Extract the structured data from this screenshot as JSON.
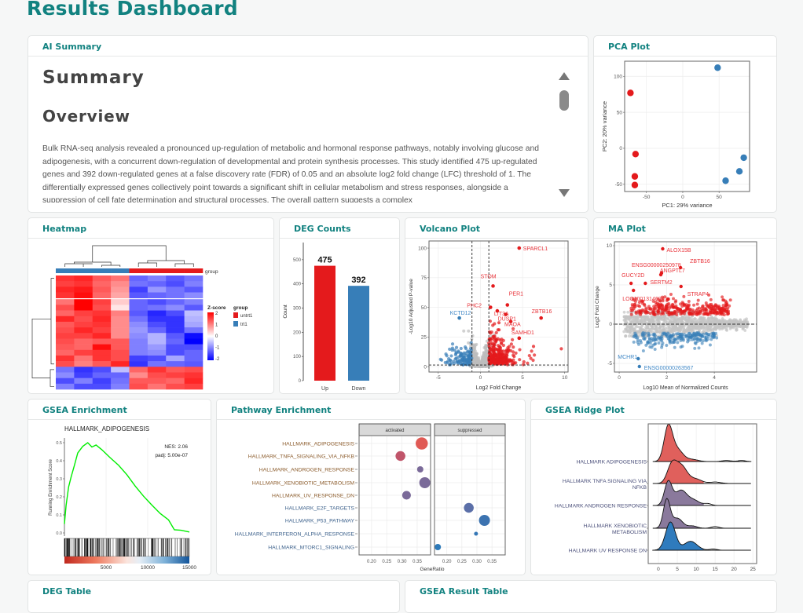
{
  "page_title": "Results Dashboard",
  "colors": {
    "accent": "#128280",
    "up": "#e41a1c",
    "down": "#377eb8",
    "ns": "#bdbdbd"
  },
  "cards": {
    "summary": "AI Summary",
    "pca": "PCA Plot",
    "heatmap": "Heatmap",
    "deg_counts": "DEG Counts",
    "volcano": "Volcano Plot",
    "ma": "MA Plot",
    "gsea": "GSEA Enrichment",
    "pathway": "Pathway Enrichment",
    "ridge": "GSEA Ridge Plot",
    "deg_table": "DEG Table",
    "gsea_table": "GSEA Result Table"
  },
  "summary": {
    "heading": "Summary",
    "subheading": "Overview",
    "text": "Bulk RNA-seq analysis revealed a pronounced up-regulation of metabolic and hormonal response pathways, notably involving glucose and adipogenesis, with a concurrent down-regulation of developmental and protein synthesis processes. This study identified 475 up-regulated genes and 392 down-regulated genes at a false discovery rate (FDR) of 0.05 and an absolute log2 fold change (LFC) threshold of 1. The differentially expressed genes collectively point towards a significant shift in cellular metabolism and stress responses, alongside a suppression of cell fate determination and structural processes. The overall pattern suggests a complex"
  },
  "chart_data": [
    {
      "id": "pca",
      "type": "scatter",
      "xlabel": "PC1: 29% variance",
      "ylabel": "PC2: 20% variance",
      "xlim": [
        -80,
        92
      ],
      "ylim": [
        -60,
        121
      ],
      "xticks": [
        -50,
        0,
        50
      ],
      "yticks": [
        -50,
        0,
        50,
        100
      ],
      "grid": true,
      "series": [
        {
          "color": "#e41a1c",
          "points": [
            [
              -72,
              77
            ],
            [
              -65,
              -8
            ],
            [
              -66,
              -39
            ],
            [
              -66,
              -51
            ]
          ]
        },
        {
          "color": "#377eb8",
          "points": [
            [
              48,
              112
            ],
            [
              59,
              -45
            ],
            [
              78,
              -32
            ],
            [
              84,
              -13
            ]
          ]
        }
      ]
    },
    {
      "id": "heatmap",
      "type": "heatmap",
      "annotation_label": "group",
      "legend_title": "Z-score",
      "legend_ticks": [
        2,
        1,
        0,
        -1,
        -2
      ],
      "group_legend_title": "group",
      "groups": [
        {
          "name": "untrt1",
          "color": "#e41a1c"
        },
        {
          "name": "trt1",
          "color": "#377eb8"
        }
      ],
      "column_groups": [
        "trt1",
        "trt1",
        "trt1",
        "trt1",
        "untrt1",
        "untrt1",
        "untrt1",
        "untrt1"
      ],
      "matrix": [
        [
          1.6,
          1.7,
          1.3,
          1.1,
          -1.2,
          -1.0,
          -1.3,
          -1.1
        ],
        [
          1.5,
          1.6,
          1.2,
          0.9,
          -1.1,
          -1.2,
          -1.4,
          -1.0
        ],
        [
          1.7,
          1.8,
          1.3,
          0.8,
          -1.5,
          -0.8,
          -1.1,
          -1.3
        ],
        [
          1.6,
          1.9,
          1.2,
          0.7,
          -1.3,
          -1.2,
          -1.1,
          -0.9
        ],
        [
          1.1,
          2.0,
          1.5,
          0.4,
          -1.2,
          -1.4,
          -1.2,
          -1.0
        ],
        [
          1.4,
          2.0,
          1.4,
          0.2,
          -1.2,
          -1.1,
          -0.9,
          -1.3
        ],
        [
          1.2,
          1.5,
          1.6,
          1.0,
          -1.3,
          -1.7,
          -1.4,
          -0.5
        ],
        [
          1.7,
          1.4,
          1.7,
          0.9,
          -1.1,
          -1.6,
          -1.6,
          -0.6
        ],
        [
          1.3,
          1.5,
          1.6,
          0.9,
          -0.9,
          -1.4,
          -1.6,
          -0.7
        ],
        [
          1.4,
          1.7,
          1.5,
          0.9,
          -0.8,
          -1.2,
          -1.6,
          -1.1
        ],
        [
          1.5,
          1.5,
          1.7,
          0.9,
          -0.9,
          -0.6,
          -1.3,
          -1.9
        ],
        [
          1.4,
          1.2,
          1.3,
          1.3,
          -1.0,
          -0.6,
          -1.2,
          -2.0
        ],
        [
          1.3,
          1.2,
          1.9,
          1.3,
          -1.0,
          -0.8,
          -1.4,
          -1.4
        ],
        [
          1.2,
          1.5,
          1.6,
          1.4,
          -1.0,
          -0.9,
          -1.4,
          -1.2
        ],
        [
          1.6,
          1.1,
          1.6,
          1.4,
          -1.5,
          -1.4,
          -0.7,
          -1.2
        ],
        [
          1.4,
          1.0,
          1.3,
          1.7,
          -1.6,
          -1.1,
          -1.2,
          -1.3
        ],
        [
          -1.1,
          -1.6,
          -1.4,
          -0.5,
          1.2,
          1.6,
          1.3,
          1.4
        ],
        [
          -0.9,
          -1.5,
          -1.2,
          -1.2,
          0.9,
          1.4,
          1.5,
          1.6
        ],
        [
          -1.4,
          -1.0,
          -1.5,
          -1.1,
          1.3,
          1.3,
          1.2,
          1.7
        ],
        [
          -1.0,
          -1.4,
          -1.4,
          -1.0,
          1.4,
          1.1,
          1.4,
          1.5
        ]
      ]
    },
    {
      "id": "deg_counts",
      "type": "bar",
      "categories": [
        "Up",
        "Down"
      ],
      "values": [
        475,
        392
      ],
      "colors": [
        "#e41a1c",
        "#377eb8"
      ],
      "ylabel": "Count",
      "ylim": [
        0,
        571
      ],
      "yticks": [
        0,
        100,
        200,
        300,
        400,
        500
      ]
    },
    {
      "id": "volcano",
      "type": "scatter",
      "xlabel": "Log2 Fold Change",
      "ylabel": "-Log10 Adjusted P-value",
      "xlim": [
        -6.1,
        10.4
      ],
      "ylim": [
        -4.6,
        106
      ],
      "xticks": [
        -5,
        0,
        5,
        10
      ],
      "yticks": [
        0,
        25,
        50,
        75,
        100
      ],
      "lfc_threshold": 1,
      "padj_line": 1.3,
      "grid": true,
      "labeled_points": [
        {
          "label": "SPARCL1",
          "x": 4.6,
          "y": 100,
          "dir": "up"
        },
        {
          "label": "STOM",
          "x": 1.5,
          "y": 68,
          "dir": "up"
        },
        {
          "label": "PER1",
          "x": 3.2,
          "y": 52,
          "dir": "up"
        },
        {
          "label": "PHC2",
          "x": 1.2,
          "y": 50,
          "dir": "up"
        },
        {
          "label": "LIT3A",
          "x": 2.0,
          "y": 47,
          "dir": "up"
        },
        {
          "label": "DUSP1",
          "x": 3.0,
          "y": 44,
          "dir": "up"
        },
        {
          "label": "ZBTB16",
          "x": 7.2,
          "y": 41,
          "dir": "up"
        },
        {
          "label": "MAOA",
          "x": 3.6,
          "y": 38,
          "dir": "up"
        },
        {
          "label": "SAMHD1",
          "x": 4.6,
          "y": 24,
          "dir": "up"
        },
        {
          "label": "KCTD12",
          "x": -2.5,
          "y": 41,
          "dir": "down"
        }
      ]
    },
    {
      "id": "ma",
      "type": "scatter",
      "xlabel": "Log10 Mean of Normalized Counts",
      "ylabel": "Log2 Fold Change",
      "xlim": [
        -0.2,
        5.78
      ],
      "ylim": [
        -6.1,
        10.5
      ],
      "xticks": [
        0,
        2,
        4
      ],
      "yticks": [
        -5,
        0,
        5,
        10
      ],
      "grid": true,
      "labeled_points": [
        {
          "label": "ALOX15B",
          "x": 1.83,
          "y": 9.6,
          "dir": "up"
        },
        {
          "label": "ENSG00000250978",
          "x": 1.75,
          "y": 6.3,
          "dir": "up"
        },
        {
          "label": "ZBTB16",
          "x": 2.58,
          "y": 7.2,
          "dir": "up"
        },
        {
          "label": "GUCY2D",
          "x": 0.5,
          "y": 5.2,
          "dir": "up"
        },
        {
          "label": "ANGPTL7",
          "x": 1.78,
          "y": 6.5,
          "dir": "up"
        },
        {
          "label": "SERTM2",
          "x": 1.1,
          "y": 5.2,
          "dir": "up"
        },
        {
          "label": "STRAP4",
          "x": 2.6,
          "y": 4.8,
          "dir": "up"
        },
        {
          "label": "LOC100131469",
          "x": 0.6,
          "y": 4.3,
          "dir": "up"
        },
        {
          "label": "MCHR1",
          "x": 0.8,
          "y": -4.4,
          "dir": "down"
        },
        {
          "label": "ENSG00000263567",
          "x": 0.85,
          "y": -5.4,
          "dir": "down"
        }
      ]
    },
    {
      "id": "gsea",
      "type": "line",
      "title": "HALLMARK_ADIPOGENESIS",
      "ylabel": "Running Enrichment Score",
      "annotations": [
        "NES: 2.06",
        "padj: 5.00e-07"
      ],
      "xlim": [
        0,
        15000
      ],
      "ylim": [
        -0.02,
        0.53
      ],
      "xticks": [
        5000,
        10000,
        15000
      ],
      "yticks": [
        0.0,
        0.1,
        0.2,
        0.3,
        0.4,
        0.5
      ],
      "line_color": "#00ee00",
      "points": [
        [
          0,
          0.05
        ],
        [
          200,
          0.15
        ],
        [
          500,
          0.26
        ],
        [
          800,
          0.31
        ],
        [
          1200,
          0.38
        ],
        [
          1600,
          0.44
        ],
        [
          2200,
          0.48
        ],
        [
          2800,
          0.5
        ],
        [
          3300,
          0.48
        ],
        [
          3800,
          0.49
        ],
        [
          4500,
          0.46
        ],
        [
          5500,
          0.42
        ],
        [
          6500,
          0.38
        ],
        [
          7500,
          0.32
        ],
        [
          8500,
          0.26
        ],
        [
          9500,
          0.2
        ],
        [
          10500,
          0.15
        ],
        [
          11500,
          0.11
        ],
        [
          12500,
          0.07
        ],
        [
          13200,
          0.02
        ],
        [
          14000,
          0.015
        ],
        [
          15000,
          0.005
        ]
      ]
    },
    {
      "id": "pathway",
      "type": "scatter",
      "xlabel": "GeneRatio",
      "facets": [
        "activated",
        "suppressed"
      ],
      "xlim": [
        0.159,
        0.394
      ],
      "xticks": [
        0.2,
        0.25,
        0.3,
        0.35
      ],
      "rows": [
        {
          "label": "HALLMARK_ADIPOGENESIS",
          "facet": "activated",
          "x": 0.365,
          "size": 9,
          "color": "#e05a55"
        },
        {
          "label": "HALLMARK_TNFA_SIGNALING_VIA_NFKB",
          "facet": "activated",
          "x": 0.295,
          "size": 7,
          "color": "#c0556a"
        },
        {
          "label": "HALLMARK_ANDROGEN_RESPONSE",
          "facet": "activated",
          "x": 0.36,
          "size": 4,
          "color": "#7a6a99"
        },
        {
          "label": "HALLMARK_XENOBIOTIC_METABOLISM",
          "facet": "activated",
          "x": 0.375,
          "size": 8,
          "color": "#7a6a99"
        },
        {
          "label": "HALLMARK_UV_RESPONSE_DN",
          "facet": "activated",
          "x": 0.315,
          "size": 6,
          "color": "#7a6a99"
        },
        {
          "label": "HALLMARK_E2F_TARGETS",
          "facet": "suppressed",
          "x": 0.273,
          "size": 7,
          "color": "#5b6fa8"
        },
        {
          "label": "HALLMARK_P53_PATHWAY",
          "facet": "suppressed",
          "x": 0.325,
          "size": 8,
          "color": "#3c73b0"
        },
        {
          "label": "HALLMARK_INTERFERON_ALPHA_RESPONSE",
          "facet": "suppressed",
          "x": 0.297,
          "size": 2,
          "color": "#3577b6"
        },
        {
          "label": "HALLMARK_MTORC1_SIGNALING",
          "facet": "suppressed",
          "x": 0.17,
          "size": 4,
          "color": "#2d7ab9"
        }
      ]
    },
    {
      "id": "ridge",
      "type": "area",
      "xlim": [
        -2.7,
        26
      ],
      "xticks": [
        0,
        5,
        10,
        15,
        20,
        25
      ],
      "categories": [
        {
          "label": "HALLMARK ADIPOGENESIS",
          "color": "#e0605c"
        },
        {
          "label": "HALLMARK TNFA SIGNALING VIA NFKB",
          "color": "#e0605c"
        },
        {
          "label": "HALLMARK ANDROGEN RESPONSE",
          "color": "#8a799c"
        },
        {
          "label": "HALLMARK XENOBIOTIC METABOLISM",
          "color": "#8a799c"
        },
        {
          "label": "HALLMARK UV RESPONSE DN",
          "color": "#2f7bbd"
        }
      ]
    }
  ]
}
